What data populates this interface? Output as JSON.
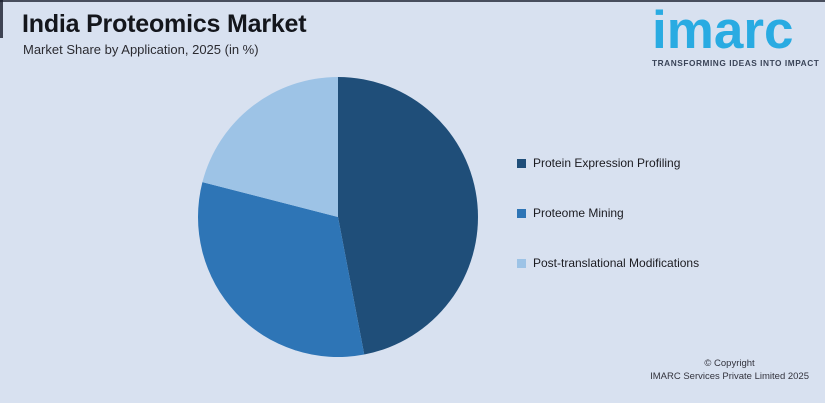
{
  "page": {
    "title": "India Proteomics Market",
    "subtitle": "Market Share by Application, 2025 (in %)",
    "background_color": "#D8E1F0"
  },
  "logo": {
    "brand_text": "imarc",
    "tagline": "TRANSFORMING IDEAS INTO IMPACT",
    "brand_color": "#29ABE2",
    "tagline_color": "#3A4458"
  },
  "legend": {
    "items": [
      {
        "label": "Protein Expression Profiling",
        "color": "#1F4E79"
      },
      {
        "label": "Proteome Mining",
        "color": "#2E75B6"
      },
      {
        "label": "Post-translational Modifications",
        "color": "#9DC3E6"
      }
    ]
  },
  "chart_data": {
    "type": "pie",
    "title": "India Proteomics Market",
    "subtitle": "Market Share by Application, 2025 (in %)",
    "unit": "%",
    "categories": [
      "Protein Expression Profiling",
      "Proteome Mining",
      "Post-translational Modifications"
    ],
    "values": [
      47,
      32,
      21
    ],
    "colors": [
      "#1F4E79",
      "#2E75B6",
      "#9DC3E6"
    ],
    "start_angle_deg": 0,
    "direction": "clockwise",
    "legend_position": "right",
    "data_labels_shown": false,
    "note": "slice values estimated from pie angles; no numeric labels shown in figure"
  },
  "footer": {
    "copyright_line1": "© Copyright",
    "copyright_line2": "IMARC Services Private Limited 2025"
  }
}
